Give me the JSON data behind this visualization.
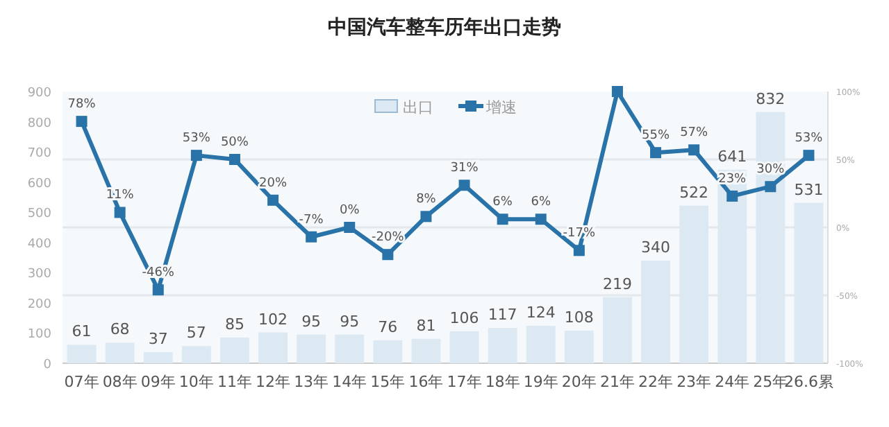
{
  "chart_data": {
    "type": "bar",
    "title": "中国汽车整车历年出口走势",
    "categories": [
      "07年",
      "08年",
      "09年",
      "10年",
      "11年",
      "12年",
      "13年",
      "14年",
      "15年",
      "16年",
      "17年",
      "18年",
      "19年",
      "20年",
      "21年",
      "22年",
      "23年",
      "24年",
      "25年",
      "26.6累"
    ],
    "series": [
      {
        "name": "出口",
        "color": "#dde9f2",
        "values": [
          61,
          68,
          37,
          57,
          85,
          102,
          95,
          95,
          76,
          81,
          106,
          117,
          124,
          108,
          219,
          340,
          522,
          641,
          832,
          531
        ],
        "data_labels": true
      },
      {
        "name": "增速",
        "type": "line",
        "axis": "y2",
        "color": "#2a73a8",
        "marker": "square",
        "values": [
          78,
          11,
          -46,
          53,
          50,
          20,
          -7,
          0,
          -20,
          8,
          31,
          6,
          6,
          -17,
          100,
          55,
          57,
          23,
          30,
          53
        ],
        "value_labels": [
          "78%",
          "11%",
          "-46%",
          "53%",
          "50%",
          "20%",
          "-7%",
          "0%",
          "-20%",
          "8%",
          "31%",
          "6%",
          "6%",
          "-17%",
          null,
          "55%",
          "57%",
          "23%",
          "30%",
          "53%"
        ]
      }
    ],
    "ylim": [
      0,
      900
    ],
    "yticks": [
      0,
      100,
      200,
      300,
      400,
      500,
      600,
      700,
      800,
      900
    ],
    "y2lim": [
      -100,
      100
    ],
    "y2ticks": [
      {
        "value": 100,
        "label": "100%"
      },
      {
        "value": 50,
        "label": "50%"
      },
      {
        "value": 0,
        "label": "0%"
      },
      {
        "value": -50,
        "label": "-50%"
      },
      {
        "value": -100,
        "label": "-100%"
      }
    ],
    "grid": "y2",
    "legend": "top"
  }
}
